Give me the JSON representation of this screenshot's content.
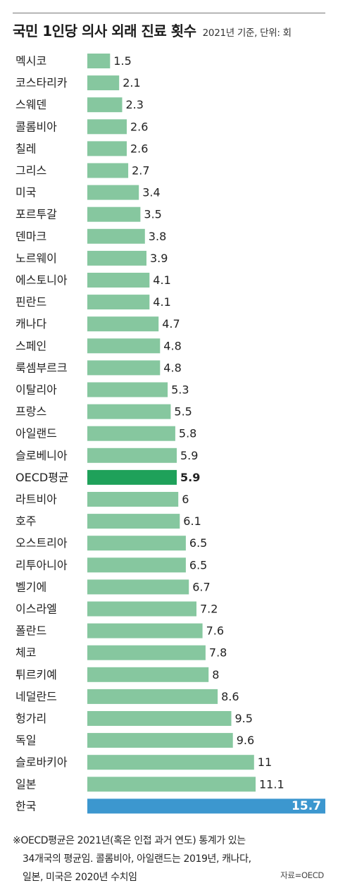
{
  "header": {
    "title": "국민 1인당 의사 외래 진료 횟수",
    "subtitle": "2021년 기준, 단위: 회"
  },
  "colors": {
    "bar": "#86c79f",
    "average": "#1fa15a",
    "korea": "#3c97cf"
  },
  "chart_data": {
    "type": "bar",
    "orientation": "horizontal",
    "title": "국민 1인당 의사 외래 진료 횟수",
    "subtitle": "2021년 기준, 단위: 회",
    "categories": [
      "멕시코",
      "코스타리카",
      "스웨덴",
      "콜롬비아",
      "칠레",
      "그리스",
      "미국",
      "포르투갈",
      "덴마크",
      "노르웨이",
      "에스토니아",
      "핀란드",
      "캐나다",
      "스페인",
      "룩셈부르크",
      "이탈리아",
      "프랑스",
      "아일랜드",
      "슬로베니아",
      "OECD평균",
      "라트비아",
      "호주",
      "오스트리아",
      "리투아니아",
      "벨기에",
      "이스라엘",
      "폴란드",
      "체코",
      "튀르키예",
      "네덜란드",
      "헝가리",
      "독일",
      "슬로바키아",
      "일본",
      "한국"
    ],
    "values": [
      1.5,
      2.1,
      2.3,
      2.6,
      2.6,
      2.7,
      3.4,
      3.5,
      3.8,
      3.9,
      4.1,
      4.1,
      4.7,
      4.8,
      4.8,
      5.3,
      5.5,
      5.8,
      5.9,
      5.9,
      6,
      6.1,
      6.5,
      6.5,
      6.7,
      7.2,
      7.6,
      7.8,
      8,
      8.6,
      9.5,
      9.6,
      11,
      11.1,
      15.7
    ],
    "value_labels": [
      "1.5",
      "2.1",
      "2.3",
      "2.6",
      "2.6",
      "2.7",
      "3.4",
      "3.5",
      "3.8",
      "3.9",
      "4.1",
      "4.1",
      "4.7",
      "4.8",
      "4.8",
      "5.3",
      "5.5",
      "5.8",
      "5.9",
      "5.9",
      "6",
      "6.1",
      "6.5",
      "6.5",
      "6.7",
      "7.2",
      "7.6",
      "7.8",
      "8",
      "8.6",
      "9.5",
      "9.6",
      "11",
      "11.1",
      "15.7"
    ],
    "highlights": {
      "OECD평균": "average",
      "한국": "korea"
    },
    "xlim": [
      0,
      15.7
    ],
    "grid": false
  },
  "footnote": {
    "lines": [
      "※OECD평균은 2021년(혹은 인접 과거 연도) 통계가 있는",
      "34개국의 평균임. 콜롬비아, 아일랜드는 2019년, 캐나다,",
      "일본, 미국은 2020년 수치임"
    ],
    "source": "자료=OECD"
  }
}
